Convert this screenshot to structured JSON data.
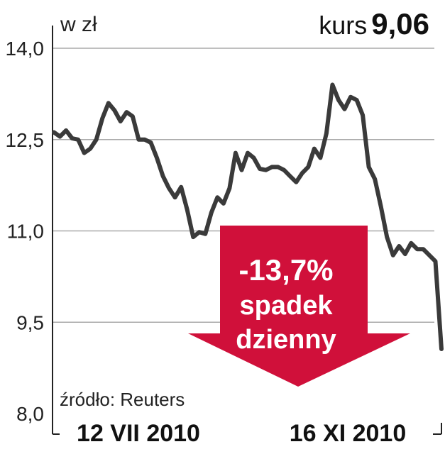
{
  "header": {
    "unit_label": "w zł",
    "kurs_label": "kurs",
    "kurs_value": "9,06"
  },
  "source": "źródło: Reuters",
  "annotation": {
    "lines": [
      "-13,7%",
      "spadek",
      "dzienny"
    ],
    "color": "#d0103a"
  },
  "colors": {
    "line": "#3a3a3a",
    "grid": "#aaaaaa",
    "axis": "#222222"
  },
  "chart_data": {
    "type": "line",
    "title": "",
    "xlabel": "",
    "ylabel": "w zł",
    "ylim": [
      8.0,
      14.0
    ],
    "yticks": [
      8.0,
      9.5,
      11.0,
      12.5,
      14.0
    ],
    "ytick_labels": [
      "8,0",
      "9,5",
      "11,0",
      "12,5",
      "14,0"
    ],
    "x_labels": [
      "12 VII 2010",
      "16 XI 2010"
    ],
    "grid": true,
    "series": [
      {
        "values": [
          12.62,
          12.55,
          12.65,
          12.52,
          12.5,
          12.28,
          12.35,
          12.5,
          12.85,
          13.1,
          12.98,
          12.8,
          12.95,
          12.88,
          12.5,
          12.5,
          12.45,
          12.2,
          11.9,
          11.7,
          11.55,
          11.72,
          11.35,
          10.9,
          10.98,
          10.95,
          11.3,
          11.55,
          11.45,
          11.7,
          12.28,
          12.0,
          12.28,
          12.2,
          12.02,
          12.0,
          12.05,
          12.05,
          12.0,
          11.9,
          11.8,
          11.95,
          12.05,
          12.35,
          12.2,
          12.6,
          13.4,
          13.15,
          13.0,
          13.2,
          13.15,
          12.9,
          12.05,
          11.85,
          11.4,
          10.9,
          10.6,
          10.75,
          10.62,
          10.8,
          10.7,
          10.7,
          10.6,
          10.5,
          9.06
        ]
      }
    ]
  }
}
